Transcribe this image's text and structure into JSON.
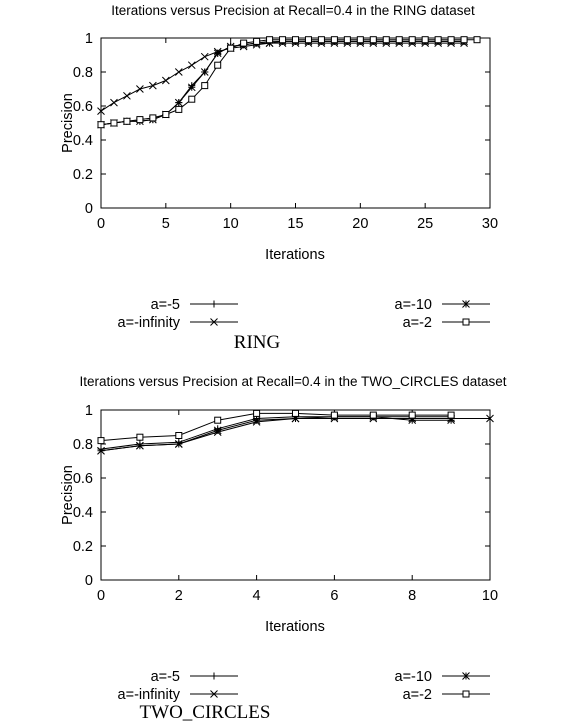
{
  "chart_data": [
    {
      "type": "line",
      "title": "Iterations versus Precision at Recall=0.4 in the RING dataset",
      "caption": "RING",
      "xlabel": "Iterations",
      "ylabel": "Precision",
      "xlim": [
        0,
        30
      ],
      "ylim": [
        0,
        1
      ],
      "xticks": [
        "0",
        "5",
        "10",
        "15",
        "20",
        "25",
        "30"
      ],
      "yticks": [
        "0",
        "0.2",
        "0.4",
        "0.6",
        "0.8",
        "1"
      ],
      "legend_position": "bottom",
      "series": [
        {
          "name": "a=-5",
          "marker": "plus",
          "x": [
            0,
            1,
            2,
            3,
            4,
            5,
            6,
            7,
            8,
            9,
            10,
            11,
            12,
            13,
            14,
            15,
            16,
            17,
            18,
            19,
            20,
            21,
            22,
            23,
            24,
            25,
            26,
            27,
            28
          ],
          "values": [
            0.49,
            0.5,
            0.51,
            0.51,
            0.52,
            0.55,
            0.62,
            0.72,
            0.8,
            0.91,
            0.95,
            0.96,
            0.97,
            0.98,
            0.98,
            0.98,
            0.98,
            0.98,
            0.98,
            0.98,
            0.98,
            0.98,
            0.98,
            0.98,
            0.98,
            0.98,
            0.98,
            0.98,
            0.98
          ]
        },
        {
          "name": "a=-infinity",
          "marker": "cross",
          "x": [
            0,
            1,
            2,
            3,
            4,
            5,
            6,
            7,
            8,
            9,
            10,
            11,
            12,
            13,
            14,
            15,
            16,
            17,
            18,
            19,
            20,
            21,
            22,
            23,
            24,
            25,
            26,
            27,
            28
          ],
          "values": [
            0.57,
            0.62,
            0.66,
            0.7,
            0.72,
            0.75,
            0.8,
            0.84,
            0.89,
            0.92,
            0.94,
            0.95,
            0.96,
            0.97,
            0.97,
            0.97,
            0.97,
            0.97,
            0.97,
            0.97,
            0.97,
            0.97,
            0.97,
            0.97,
            0.97,
            0.97,
            0.97,
            0.97,
            0.97
          ]
        },
        {
          "name": "a=-10",
          "marker": "star",
          "x": [
            0,
            1,
            2,
            3,
            4,
            5,
            6,
            7,
            8,
            9,
            10,
            11,
            12,
            13,
            14,
            15,
            16,
            17,
            18,
            19,
            20,
            21,
            22,
            23,
            24,
            25,
            26,
            27,
            28
          ],
          "values": [
            0.49,
            0.5,
            0.51,
            0.51,
            0.52,
            0.55,
            0.62,
            0.71,
            0.8,
            0.91,
            0.95,
            0.96,
            0.97,
            0.97,
            0.98,
            0.98,
            0.98,
            0.98,
            0.98,
            0.98,
            0.98,
            0.98,
            0.98,
            0.98,
            0.98,
            0.98,
            0.98,
            0.98,
            0.98
          ]
        },
        {
          "name": "a=-2",
          "marker": "square",
          "x": [
            0,
            1,
            2,
            3,
            4,
            5,
            6,
            7,
            8,
            9,
            10,
            11,
            12,
            13,
            14,
            15,
            16,
            17,
            18,
            19,
            20,
            21,
            22,
            23,
            24,
            25,
            26,
            27,
            28,
            29
          ],
          "values": [
            0.49,
            0.5,
            0.51,
            0.52,
            0.53,
            0.55,
            0.58,
            0.64,
            0.72,
            0.84,
            0.94,
            0.97,
            0.98,
            0.99,
            0.99,
            0.99,
            0.99,
            0.99,
            0.99,
            0.99,
            0.99,
            0.99,
            0.99,
            0.99,
            0.99,
            0.99,
            0.99,
            0.99,
            0.99,
            0.99
          ]
        }
      ]
    },
    {
      "type": "line",
      "title": "Iterations versus Precision at Recall=0.4 in the TWO_CIRCLES dataset",
      "caption": "TWO_CIRCLES",
      "xlabel": "Iterations",
      "ylabel": "Precision",
      "xlim": [
        0,
        10
      ],
      "ylim": [
        0,
        1
      ],
      "xticks": [
        "0",
        "2",
        "4",
        "6",
        "8",
        "10"
      ],
      "yticks": [
        "0",
        "0.2",
        "0.4",
        "0.6",
        "0.8",
        "1"
      ],
      "legend_position": "bottom",
      "series": [
        {
          "name": "a=-5",
          "marker": "plus",
          "x": [
            0,
            1,
            2,
            3,
            4,
            5,
            6,
            7,
            8,
            9
          ],
          "values": [
            0.77,
            0.8,
            0.81,
            0.89,
            0.95,
            0.96,
            0.96,
            0.96,
            0.96,
            0.96
          ]
        },
        {
          "name": "a=-infinity",
          "marker": "cross",
          "x": [
            0,
            1,
            2,
            3,
            4,
            5,
            6,
            7,
            8,
            9,
            10
          ],
          "values": [
            0.76,
            0.79,
            0.8,
            0.87,
            0.93,
            0.95,
            0.95,
            0.95,
            0.95,
            0.95,
            0.95
          ]
        },
        {
          "name": "a=-10",
          "marker": "star",
          "x": [
            0,
            1,
            2,
            3,
            4,
            5,
            6,
            7,
            8,
            9
          ],
          "values": [
            0.76,
            0.79,
            0.8,
            0.88,
            0.94,
            0.95,
            0.96,
            0.96,
            0.94,
            0.94
          ]
        },
        {
          "name": "a=-2",
          "marker": "square",
          "x": [
            0,
            1,
            2,
            3,
            4,
            5,
            6,
            7,
            8,
            9
          ],
          "values": [
            0.82,
            0.84,
            0.85,
            0.94,
            0.98,
            0.98,
            0.97,
            0.97,
            0.97,
            0.97
          ]
        }
      ]
    }
  ]
}
